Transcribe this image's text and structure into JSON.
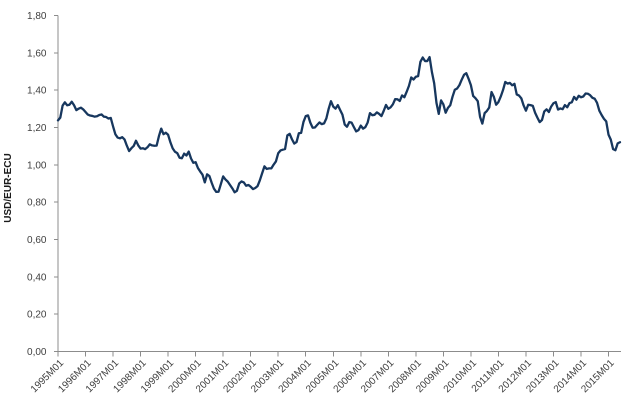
{
  "chart": {
    "y_axis_title": "USD/EUR-ECU"
  },
  "chart_data": {
    "type": "line",
    "title": "",
    "xlabel": "",
    "ylabel": "USD/EUR-ECU",
    "ylim": [
      0,
      1.8
    ],
    "y_tick_step": 0.2,
    "y_tick_labels": [
      "0,00",
      "0,20",
      "0,40",
      "0,60",
      "0,80",
      "1,00",
      "1,20",
      "1,40",
      "1,60",
      "1,80"
    ],
    "x_tick_labels": [
      "1995M01",
      "1996M01",
      "1997M01",
      "1998M01",
      "1999M01",
      "2000M01",
      "2001M01",
      "2002M01",
      "2003M01",
      "2004M01",
      "2005M01",
      "2006M01",
      "2007M01",
      "2008M01",
      "2009M01",
      "2010M01",
      "2011M01",
      "2012M01",
      "2013M01",
      "2014M01",
      "2015M01"
    ],
    "x_start": "1995M01",
    "x_frequency": "monthly",
    "months_per_tick": 12,
    "grid": false,
    "legend": "none",
    "line_color": "#17375E",
    "axis_color": "#8C8C8C",
    "background_color": "#FFFFFF",
    "series": [
      {
        "name": "USD/EUR-ECU",
        "values": [
          1.238,
          1.253,
          1.317,
          1.335,
          1.319,
          1.322,
          1.338,
          1.319,
          1.293,
          1.301,
          1.306,
          1.297,
          1.283,
          1.269,
          1.264,
          1.262,
          1.258,
          1.26,
          1.267,
          1.27,
          1.258,
          1.256,
          1.248,
          1.251,
          1.206,
          1.164,
          1.146,
          1.142,
          1.148,
          1.136,
          1.103,
          1.074,
          1.089,
          1.101,
          1.129,
          1.104,
          1.087,
          1.089,
          1.084,
          1.094,
          1.11,
          1.104,
          1.102,
          1.103,
          1.154,
          1.194,
          1.164,
          1.172,
          1.161,
          1.121,
          1.088,
          1.07,
          1.063,
          1.038,
          1.035,
          1.06,
          1.05,
          1.071,
          1.034,
          1.011,
          1.014,
          0.983,
          0.964,
          0.947,
          0.906,
          0.949,
          0.94,
          0.904,
          0.872,
          0.855,
          0.856,
          0.897,
          0.938,
          0.922,
          0.91,
          0.892,
          0.874,
          0.853,
          0.861,
          0.9,
          0.911,
          0.906,
          0.888,
          0.892,
          0.883,
          0.87,
          0.876,
          0.886,
          0.917,
          0.955,
          0.992,
          0.978,
          0.981,
          0.981,
          1.001,
          1.018,
          1.062,
          1.077,
          1.081,
          1.085,
          1.158,
          1.166,
          1.137,
          1.114,
          1.122,
          1.169,
          1.171,
          1.229,
          1.261,
          1.265,
          1.226,
          1.199,
          1.2,
          1.214,
          1.227,
          1.218,
          1.222,
          1.249,
          1.3,
          1.341,
          1.312,
          1.301,
          1.32,
          1.294,
          1.269,
          1.216,
          1.204,
          1.229,
          1.226,
          1.202,
          1.179,
          1.186,
          1.21,
          1.194,
          1.202,
          1.227,
          1.277,
          1.266,
          1.268,
          1.281,
          1.273,
          1.261,
          1.289,
          1.321,
          1.3,
          1.308,
          1.324,
          1.352,
          1.351,
          1.342,
          1.372,
          1.362,
          1.391,
          1.423,
          1.468,
          1.457,
          1.472,
          1.475,
          1.552,
          1.575,
          1.556,
          1.556,
          1.577,
          1.498,
          1.437,
          1.332,
          1.273,
          1.345,
          1.324,
          1.279,
          1.305,
          1.319,
          1.365,
          1.402,
          1.409,
          1.427,
          1.456,
          1.482,
          1.491,
          1.461,
          1.427,
          1.369,
          1.357,
          1.341,
          1.257,
          1.221,
          1.277,
          1.289,
          1.307,
          1.39,
          1.365,
          1.322,
          1.336,
          1.365,
          1.4,
          1.444,
          1.435,
          1.439,
          1.426,
          1.434,
          1.377,
          1.371,
          1.356,
          1.318,
          1.29,
          1.322,
          1.32,
          1.316,
          1.279,
          1.253,
          1.229,
          1.24,
          1.286,
          1.297,
          1.283,
          1.312,
          1.33,
          1.336,
          1.296,
          1.302,
          1.298,
          1.32,
          1.308,
          1.331,
          1.335,
          1.364,
          1.349,
          1.37,
          1.362,
          1.366,
          1.382,
          1.381,
          1.373,
          1.359,
          1.354,
          1.332,
          1.29,
          1.267,
          1.247,
          1.233,
          1.162,
          1.135,
          1.084,
          1.078,
          1.115,
          1.121
        ]
      }
    ]
  }
}
